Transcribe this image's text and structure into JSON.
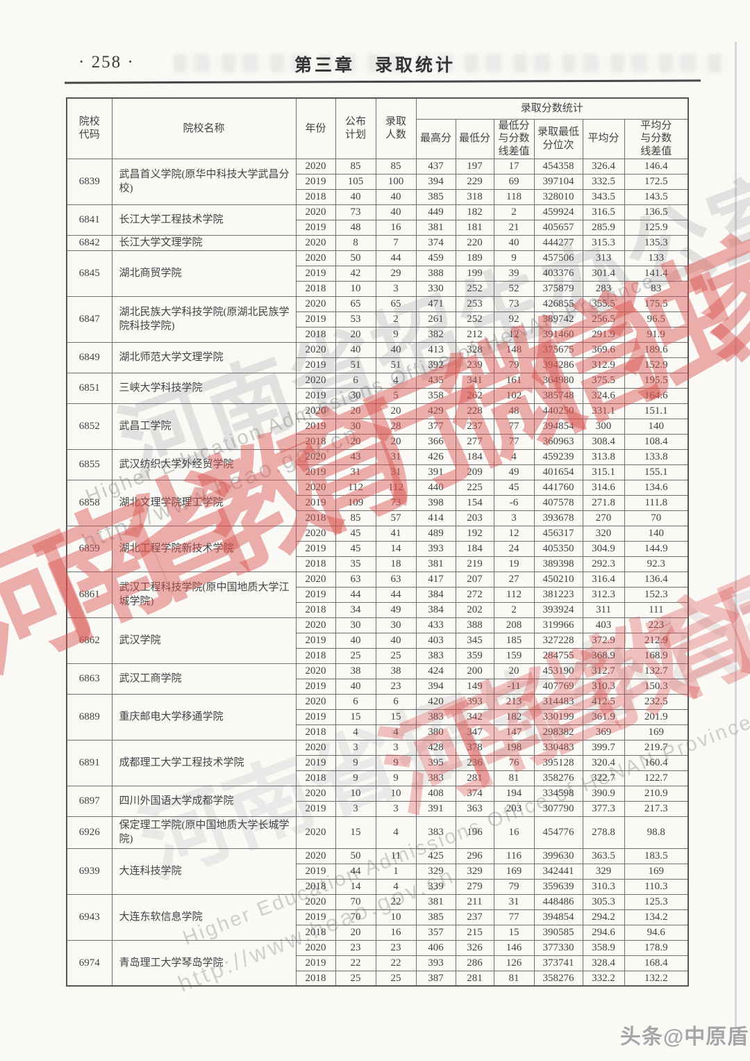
{
  "page": {
    "page_number": "· 258 ·",
    "chapter_title": "第三章　录取统计",
    "credit": "头条@中原盾"
  },
  "watermarks": {
    "red_text": "河南省教育厅微信独家出品",
    "gray_cn_text": "河南省招生办公室",
    "gray_en_text": "Higher Education Admissions Office of HeNAN Province",
    "gray_url_text": "http://www.heao.gov.cn",
    "red_color": "#d9524e",
    "gray_color": "#8c8c8c"
  },
  "table": {
    "group_header": "录取分数统计",
    "columns": [
      "院校\n代码",
      "院校名称",
      "年份",
      "公布\n计划",
      "录取\n人数"
    ],
    "score_columns": [
      "最高分",
      "最低分",
      "最低分\n与分数\n线差值",
      "录取最低\n分位次",
      "平均分",
      "平均分\n与分数\n线差值"
    ],
    "schools": [
      {
        "code": "6839",
        "name": "武昌首义学院(原华中科技大学武昌分校)",
        "rows": [
          [
            "2020",
            "85",
            "85",
            "437",
            "197",
            "17",
            "454358",
            "326.4",
            "146.4"
          ],
          [
            "2019",
            "105",
            "100",
            "394",
            "229",
            "69",
            "397104",
            "332.5",
            "172.5"
          ],
          [
            "2018",
            "40",
            "40",
            "385",
            "318",
            "118",
            "328010",
            "343.5",
            "143.5"
          ]
        ]
      },
      {
        "code": "6841",
        "name": "长江大学工程技术学院",
        "rows": [
          [
            "2020",
            "73",
            "40",
            "449",
            "182",
            "2",
            "459924",
            "316.5",
            "136.5"
          ],
          [
            "2019",
            "48",
            "16",
            "381",
            "181",
            "21",
            "405657",
            "285.9",
            "125.9"
          ]
        ]
      },
      {
        "code": "6842",
        "name": "长江大学文理学院",
        "rows": [
          [
            "2020",
            "8",
            "7",
            "374",
            "220",
            "40",
            "444277",
            "315.3",
            "135.3"
          ]
        ]
      },
      {
        "code": "6845",
        "name": "湖北商贸学院",
        "rows": [
          [
            "2020",
            "50",
            "44",
            "459",
            "189",
            "9",
            "457506",
            "313",
            "133"
          ],
          [
            "2019",
            "42",
            "29",
            "388",
            "199",
            "39",
            "403376",
            "301.4",
            "141.4"
          ],
          [
            "2018",
            "10",
            "3",
            "330",
            "252",
            "52",
            "375879",
            "283",
            "83"
          ]
        ]
      },
      {
        "code": "6847",
        "name": "湖北民族大学科技学院(原湖北民族学院科技学院)",
        "rows": [
          [
            "2020",
            "65",
            "65",
            "471",
            "253",
            "73",
            "426855",
            "355.5",
            "175.5"
          ],
          [
            "2019",
            "53",
            "2",
            "261",
            "252",
            "92",
            "389742",
            "256.5",
            "96.5"
          ],
          [
            "2018",
            "20",
            "9",
            "382",
            "212",
            "12",
            "391460",
            "291.9",
            "91.9"
          ]
        ]
      },
      {
        "code": "6849",
        "name": "湖北师范大学文理学院",
        "rows": [
          [
            "2020",
            "40",
            "40",
            "413",
            "328",
            "148",
            "375675",
            "369.6",
            "189.6"
          ],
          [
            "2019",
            "51",
            "51",
            "392",
            "239",
            "79",
            "394286",
            "312.9",
            "152.9"
          ]
        ]
      },
      {
        "code": "6851",
        "name": "三峡大学科技学院",
        "rows": [
          [
            "2020",
            "6",
            "4",
            "435",
            "341",
            "161",
            "364980",
            "375.5",
            "195.5"
          ],
          [
            "2019",
            "30",
            "5",
            "358",
            "262",
            "102",
            "385748",
            "324.6",
            "164.6"
          ]
        ]
      },
      {
        "code": "6852",
        "name": "武昌工学院",
        "rows": [
          [
            "2020",
            "20",
            "20",
            "429",
            "228",
            "48",
            "440250",
            "331.1",
            "151.1"
          ],
          [
            "2019",
            "30",
            "28",
            "377",
            "237",
            "77",
            "394854",
            "300",
            "140"
          ],
          [
            "2018",
            "20",
            "20",
            "366",
            "277",
            "77",
            "360963",
            "308.4",
            "108.4"
          ]
        ]
      },
      {
        "code": "6855",
        "name": "武汉纺织大学外经贸学院",
        "rows": [
          [
            "2020",
            "43",
            "31",
            "426",
            "184",
            "4",
            "459239",
            "313.8",
            "133.8"
          ],
          [
            "2019",
            "31",
            "31",
            "391",
            "209",
            "49",
            "401654",
            "315.1",
            "155.1"
          ]
        ]
      },
      {
        "code": "6858",
        "name": "湖北文理学院理工学院",
        "rows": [
          [
            "2020",
            "112",
            "112",
            "440",
            "225",
            "45",
            "441760",
            "314.6",
            "134.6"
          ],
          [
            "2019",
            "109",
            "73",
            "398",
            "154",
            "-6",
            "407578",
            "271.8",
            "111.8"
          ],
          [
            "2018",
            "85",
            "57",
            "414",
            "203",
            "3",
            "393678",
            "270",
            "70"
          ]
        ]
      },
      {
        "code": "6859",
        "name": "湖北工程学院新技术学院",
        "rows": [
          [
            "2020",
            "45",
            "41",
            "489",
            "192",
            "12",
            "456317",
            "320",
            "140"
          ],
          [
            "2019",
            "45",
            "14",
            "393",
            "184",
            "24",
            "405350",
            "304.9",
            "144.9"
          ],
          [
            "2018",
            "35",
            "18",
            "381",
            "219",
            "19",
            "389398",
            "292.3",
            "92.3"
          ]
        ]
      },
      {
        "code": "6861",
        "name": "武汉工程科技学院(原中国地质大学江城学院)",
        "rows": [
          [
            "2020",
            "63",
            "63",
            "417",
            "207",
            "27",
            "450210",
            "316.4",
            "136.4"
          ],
          [
            "2019",
            "44",
            "44",
            "384",
            "272",
            "112",
            "381223",
            "312.3",
            "152.3"
          ],
          [
            "2018",
            "34",
            "49",
            "384",
            "202",
            "2",
            "393924",
            "311",
            "111"
          ]
        ]
      },
      {
        "code": "6862",
        "name": "武汉学院",
        "rows": [
          [
            "2020",
            "30",
            "30",
            "433",
            "388",
            "208",
            "319966",
            "403",
            "223"
          ],
          [
            "2019",
            "40",
            "40",
            "403",
            "345",
            "185",
            "327228",
            "372.9",
            "212.9"
          ],
          [
            "2018",
            "25",
            "25",
            "383",
            "359",
            "159",
            "284755",
            "368.9",
            "168.9"
          ]
        ]
      },
      {
        "code": "6863",
        "name": "武汉工商学院",
        "rows": [
          [
            "2020",
            "38",
            "38",
            "424",
            "200",
            "20",
            "453190",
            "312.7",
            "132.7"
          ],
          [
            "2019",
            "40",
            "23",
            "394",
            "149",
            "-11",
            "407769",
            "310.3",
            "150.3"
          ]
        ]
      },
      {
        "code": "6889",
        "name": "重庆邮电大学移通学院",
        "rows": [
          [
            "2020",
            "6",
            "6",
            "420",
            "393",
            "213",
            "314483",
            "412.5",
            "232.5"
          ],
          [
            "2019",
            "15",
            "15",
            "383",
            "342",
            "182",
            "330199",
            "361.9",
            "201.9"
          ],
          [
            "2018",
            "4",
            "4",
            "380",
            "347",
            "147",
            "298382",
            "369",
            "169"
          ]
        ]
      },
      {
        "code": "6891",
        "name": "成都理工大学工程技术学院",
        "rows": [
          [
            "2020",
            "3",
            "3",
            "428",
            "378",
            "198",
            "330483",
            "399.7",
            "219.7"
          ],
          [
            "2019",
            "9",
            "9",
            "395",
            "236",
            "76",
            "395128",
            "320.4",
            "160.4"
          ],
          [
            "2018",
            "9",
            "9",
            "383",
            "281",
            "81",
            "358276",
            "322.7",
            "122.7"
          ]
        ]
      },
      {
        "code": "6897",
        "name": "四川外国语大学成都学院",
        "rows": [
          [
            "2020",
            "10",
            "10",
            "408",
            "374",
            "194",
            "334598",
            "390.9",
            "210.9"
          ],
          [
            "2019",
            "3",
            "3",
            "391",
            "363",
            "203",
            "307790",
            "377.3",
            "217.3"
          ]
        ]
      },
      {
        "code": "6926",
        "name": "保定理工学院(原中国地质大学长城学院)",
        "tall": true,
        "rows": [
          [
            "2020",
            "15",
            "4",
            "383",
            "196",
            "16",
            "454776",
            "278.8",
            "98.8"
          ]
        ]
      },
      {
        "code": "6939",
        "name": "大连科技学院",
        "rows": [
          [
            "2020",
            "50",
            "11",
            "425",
            "296",
            "116",
            "399630",
            "363.5",
            "183.5"
          ],
          [
            "2019",
            "44",
            "1",
            "329",
            "329",
            "169",
            "342441",
            "329",
            "169"
          ],
          [
            "2018",
            "14",
            "4",
            "339",
            "279",
            "79",
            "359639",
            "310.3",
            "110.3"
          ]
        ]
      },
      {
        "code": "6943",
        "name": "大连东软信息学院",
        "rows": [
          [
            "2020",
            "70",
            "22",
            "381",
            "211",
            "31",
            "448486",
            "305.3",
            "125.3"
          ],
          [
            "2019",
            "70",
            "10",
            "385",
            "237",
            "77",
            "394854",
            "294.2",
            "134.2"
          ],
          [
            "2018",
            "20",
            "16",
            "357",
            "215",
            "15",
            "390585",
            "294.6",
            "94.6"
          ]
        ]
      },
      {
        "code": "6974",
        "name": "青岛理工大学琴岛学院",
        "rows": [
          [
            "2020",
            "23",
            "23",
            "406",
            "326",
            "146",
            "377330",
            "358.9",
            "178.9"
          ],
          [
            "2019",
            "22",
            "22",
            "393",
            "286",
            "126",
            "373741",
            "328.4",
            "168.4"
          ],
          [
            "2018",
            "25",
            "25",
            "387",
            "281",
            "81",
            "358276",
            "332.2",
            "132.2"
          ]
        ]
      }
    ]
  }
}
